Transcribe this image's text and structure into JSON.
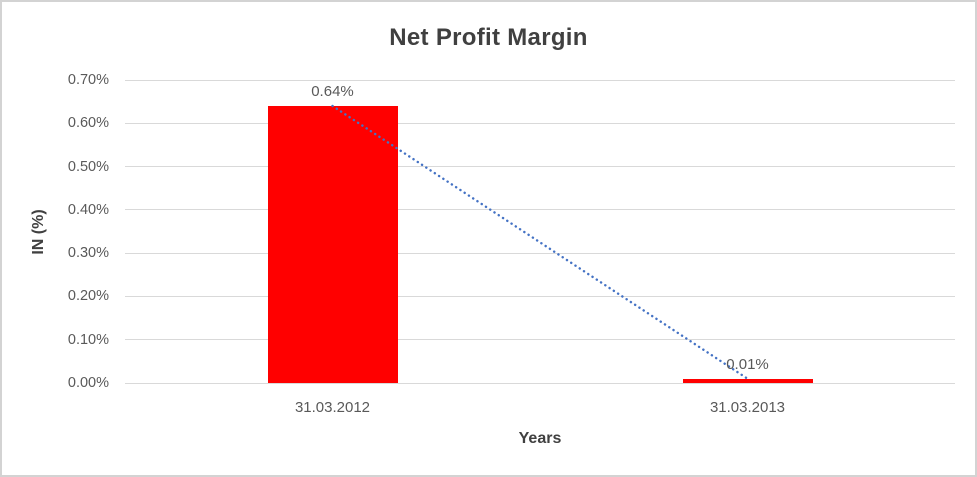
{
  "page": {
    "background": "#FFFFFF",
    "frame_border_color": "#D3D3D3"
  },
  "chart_data": {
    "type": "bar",
    "title": "Net Profit Margin",
    "categories": [
      "31.03.2012",
      "31.03.2013"
    ],
    "values": [
      0.64,
      0.01
    ],
    "data_labels": [
      "0.64%",
      "0.01%"
    ],
    "xlabel": "Years",
    "ylabel": "IN (%)",
    "ylim": [
      0,
      0.7
    ],
    "y_ticks": [
      {
        "value": 0.0,
        "label": "0.00%"
      },
      {
        "value": 0.1,
        "label": "0.10%"
      },
      {
        "value": 0.2,
        "label": "0.20%"
      },
      {
        "value": 0.3,
        "label": "0.30%"
      },
      {
        "value": 0.4,
        "label": "0.40%"
      },
      {
        "value": 0.5,
        "label": "0.50%"
      },
      {
        "value": 0.6,
        "label": "0.60%"
      },
      {
        "value": 0.7,
        "label": "0.70%"
      }
    ],
    "grid": "horizontal",
    "legend": "none",
    "trendline": {
      "style": "dotted",
      "points": [
        [
          0,
          0.64
        ],
        [
          1,
          0.01
        ]
      ]
    },
    "colors": {
      "bar": "#FF0000",
      "trendline": "#4472C4",
      "gridline": "#D9D9D9",
      "title_text": "#404040",
      "tick_text": "#595959"
    }
  }
}
